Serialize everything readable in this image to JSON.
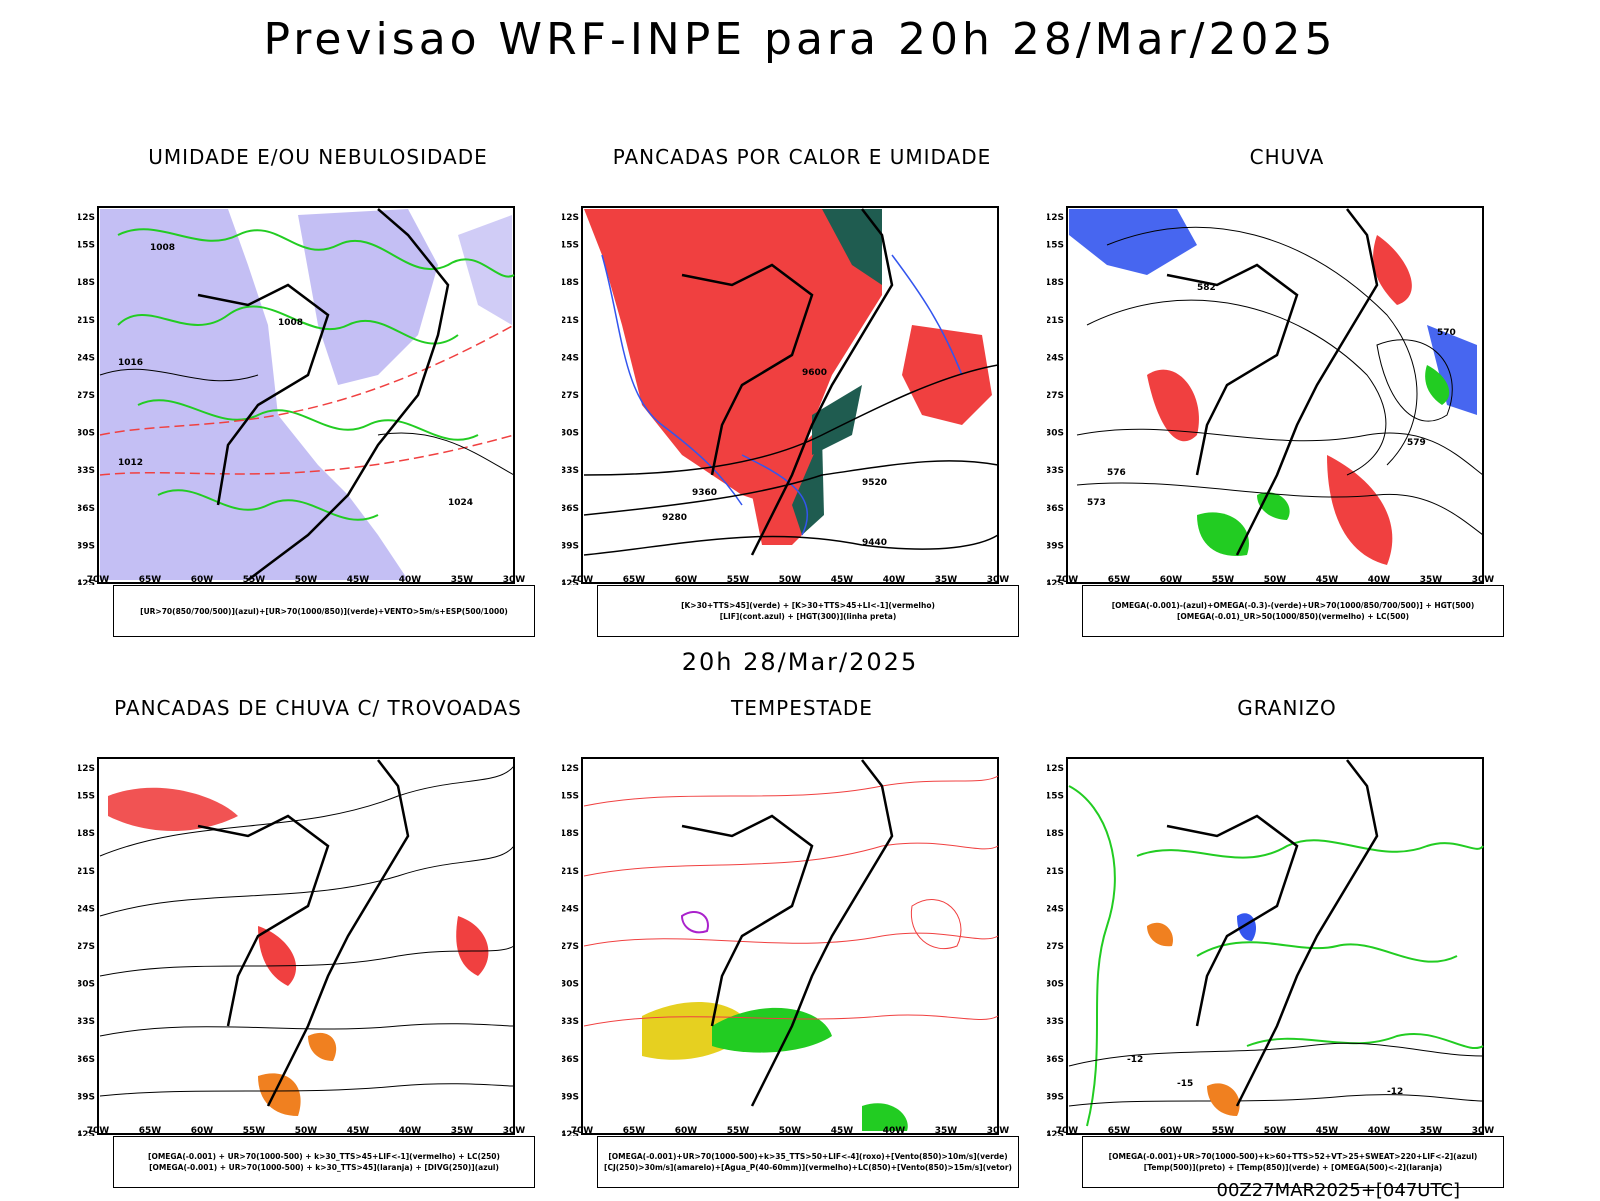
{
  "title": "Previsao WRF-INPE  para 20h 28/Mar/2025",
  "mid_time": "20h 28/Mar/2025",
  "run_label": "00Z27MAR2025+[047UTC]",
  "axes": {
    "lat_ticks": [
      "12S",
      "15S",
      "18S",
      "21S",
      "24S",
      "27S",
      "30S",
      "33S",
      "36S",
      "39S",
      "42S"
    ],
    "lon_ticks": [
      "70W",
      "65W",
      "60W",
      "55W",
      "50W",
      "45W",
      "40W",
      "35W",
      "30W"
    ]
  },
  "colors": {
    "red": "#f04040",
    "green": "#22cc22",
    "blue": "#3355ee",
    "lavender": "#b0aaf0",
    "darkgreen": "#1f5c50",
    "yellow": "#e6d020",
    "orange": "#f08020",
    "purple": "#aa22cc"
  },
  "panels": [
    {
      "title": "UMIDADE E/OU NEBULOSIDADE",
      "legend": [
        "[UR>70(850/700/500)](azul)+[UR>70(1000/850)](verde)+VENTO>5m/s+ESP(500/1000)"
      ],
      "contour_labels": [
        "1008",
        "1008",
        "1012",
        "1016",
        "1024"
      ]
    },
    {
      "title": "PANCADAS POR CALOR E UMIDADE",
      "legend": [
        "[K>30+TTS>45](verde) + [K>30+TTS>45+LI<-1](vermelho)",
        "[LIF](cont.azul) + [HGT(300)](linha preta)"
      ],
      "contour_labels": [
        "9600",
        "9520",
        "9440",
        "9360",
        "9280"
      ]
    },
    {
      "title": "CHUVA",
      "legend": [
        "[OMEGA(-0.001)-(azul)+OMEGA(-0.3)-(verde)+UR>70(1000/850/700/500)] + HGT(500)",
        "[OMEGA(-0.01)_UR>50(1000/850)(vermelho) + LC(500)"
      ],
      "contour_labels": [
        "582",
        "579",
        "576",
        "573",
        "570"
      ]
    },
    {
      "title": "PANCADAS DE CHUVA C/ TROVOADAS",
      "legend": [
        "[OMEGA(-0.001) + UR>70(1000-500) + k>30_TTS>45+LIF<-1](vermelho) + LC(250)",
        "[OMEGA(-0.001) + UR>70(1000-500) + k>30_TTS>45](laranja) + [DIVG(250)](azul)"
      ],
      "contour_labels": []
    },
    {
      "title": "TEMPESTADE",
      "legend": [
        "[OMEGA(-0.001)+UR>70(1000-500)+k>35_TTS>50+LIF<-4](roxo)+[Vento(850)>10m/s](verde)",
        "[CJ(250)>30m/s](amarelo)+[Agua_P(40-60mm)](vermelho)+LC(850)+[Vento(850)>15m/s](vetor)"
      ],
      "contour_labels": []
    },
    {
      "title": "GRANIZO",
      "legend": [
        "[OMEGA(-0.001)+UR>70(1000-500)+k>60+TTS>52+VT>25+SWEAT>220+LIF<-2](azul)",
        "[Temp(500)](preto) + [Temp(850)](verde) + [OMEGA(500)<-2](laranja)"
      ],
      "contour_labels": [
        "-12",
        "-15",
        "-12"
      ]
    }
  ]
}
